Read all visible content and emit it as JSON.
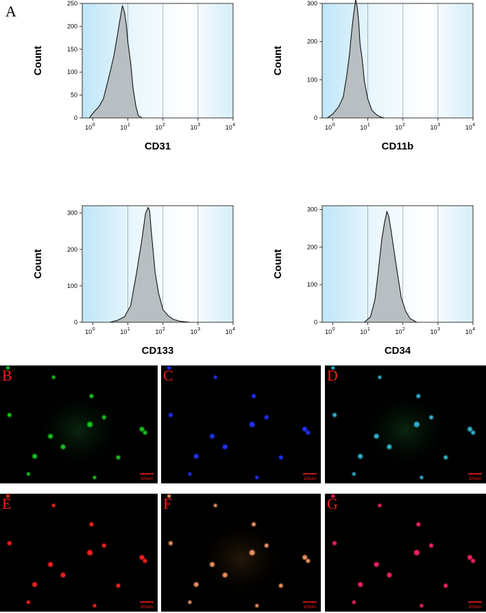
{
  "figure": {
    "panel_A_label": "A",
    "micro_panels": [
      {
        "label": "B",
        "color": "#18c020",
        "scale_bar": "100um"
      },
      {
        "label": "C",
        "color": "#2030ff",
        "scale_bar": "100um"
      },
      {
        "label": "D",
        "color": "#30b0c8",
        "scale_bar": "100um"
      },
      {
        "label": "E",
        "color": "#ff2020",
        "scale_bar": "100um"
      },
      {
        "label": "F",
        "color": "#e89060",
        "scale_bar": "100um"
      },
      {
        "label": "G",
        "color": "#ff2060",
        "scale_bar": "100um"
      }
    ]
  },
  "chart_data": [
    {
      "type": "area",
      "xlabel": "CD31",
      "ylabel": "Count",
      "x_scale": "log",
      "xlim": [
        0.5,
        10000
      ],
      "x_ticks": [
        {
          "base": "10",
          "exp": "0"
        },
        {
          "base": "10",
          "exp": "1"
        },
        {
          "base": "10",
          "exp": "2"
        },
        {
          "base": "10",
          "exp": "3"
        },
        {
          "base": "10",
          "exp": "4"
        }
      ],
      "ylim": [
        0,
        250
      ],
      "y_ticks": [
        "0",
        "50",
        "100",
        "150",
        "200",
        "250"
      ],
      "series": [
        {
          "x": [
            0.8,
            1.0,
            1.5,
            2.0,
            3.0,
            4.0,
            5.0,
            6.0,
            7.0,
            8.0,
            9.0,
            10.0,
            12.0,
            14.0,
            17.0,
            20.0,
            25.0
          ],
          "y": [
            0,
            10,
            25,
            45,
            95,
            140,
            180,
            220,
            245,
            235,
            205,
            170,
            120,
            70,
            25,
            5,
            0
          ]
        }
      ]
    },
    {
      "type": "area",
      "xlabel": "CD11b",
      "ylabel": "Count",
      "x_scale": "log",
      "xlim": [
        0.5,
        10000
      ],
      "x_ticks": [
        {
          "base": "10",
          "exp": "0"
        },
        {
          "base": "10",
          "exp": "1"
        },
        {
          "base": "10",
          "exp": "2"
        },
        {
          "base": "10",
          "exp": "3"
        },
        {
          "base": "10",
          "exp": "4"
        }
      ],
      "ylim": [
        0,
        300
      ],
      "y_ticks": [
        "0",
        "100",
        "200",
        "300"
      ],
      "series": [
        {
          "x": [
            0.7,
            1.0,
            1.5,
            2.0,
            2.5,
            3.0,
            3.5,
            4.0,
            4.5,
            5.0,
            5.5,
            6.0,
            7.0,
            8.0,
            10.0,
            13.0,
            17.0,
            22.0,
            30.0
          ],
          "y": [
            0,
            10,
            30,
            60,
            110,
            170,
            230,
            280,
            310,
            295,
            250,
            200,
            150,
            100,
            50,
            25,
            10,
            3,
            0
          ]
        }
      ]
    },
    {
      "type": "area",
      "xlabel": "CD133",
      "ylabel": "Count",
      "x_scale": "log",
      "xlim": [
        0.5,
        10000
      ],
      "x_ticks": [
        {
          "base": "10",
          "exp": "0"
        },
        {
          "base": "10",
          "exp": "1"
        },
        {
          "base": "10",
          "exp": "2"
        },
        {
          "base": "10",
          "exp": "3"
        },
        {
          "base": "10",
          "exp": "4"
        }
      ],
      "ylim": [
        0,
        320
      ],
      "y_ticks": [
        "0",
        "100",
        "200",
        "300"
      ],
      "series": [
        {
          "x": [
            3.0,
            5.0,
            8.0,
            12.0,
            18.0,
            25.0,
            32.0,
            38.0,
            42.0,
            46.0,
            52.0,
            60.0,
            75.0,
            100.0,
            140.0,
            200.0,
            300.0,
            600.0
          ],
          "y": [
            0,
            5,
            15,
            50,
            140,
            230,
            300,
            320,
            305,
            260,
            200,
            140,
            80,
            40,
            18,
            8,
            3,
            0
          ]
        }
      ]
    },
    {
      "type": "area",
      "xlabel": "CD34",
      "ylabel": "Count",
      "x_scale": "log",
      "xlim": [
        0.5,
        10000
      ],
      "x_ticks": [
        {
          "base": "10",
          "exp": "0"
        },
        {
          "base": "10",
          "exp": "1"
        },
        {
          "base": "10",
          "exp": "2"
        },
        {
          "base": "10",
          "exp": "3"
        },
        {
          "base": "10",
          "exp": "4"
        }
      ],
      "ylim": [
        0,
        310
      ],
      "y_ticks": [
        "0",
        "100",
        "200",
        "300"
      ],
      "series": [
        {
          "x": [
            8.0,
            12.0,
            16.0,
            20.0,
            25.0,
            30.0,
            35.0,
            40.0,
            45.0,
            55.0,
            70.0,
            90.0,
            120.0,
            160.0,
            250.0
          ],
          "y": [
            0,
            15,
            60,
            140,
            220,
            270,
            295,
            285,
            250,
            200,
            130,
            70,
            30,
            10,
            0
          ]
        }
      ]
    }
  ]
}
